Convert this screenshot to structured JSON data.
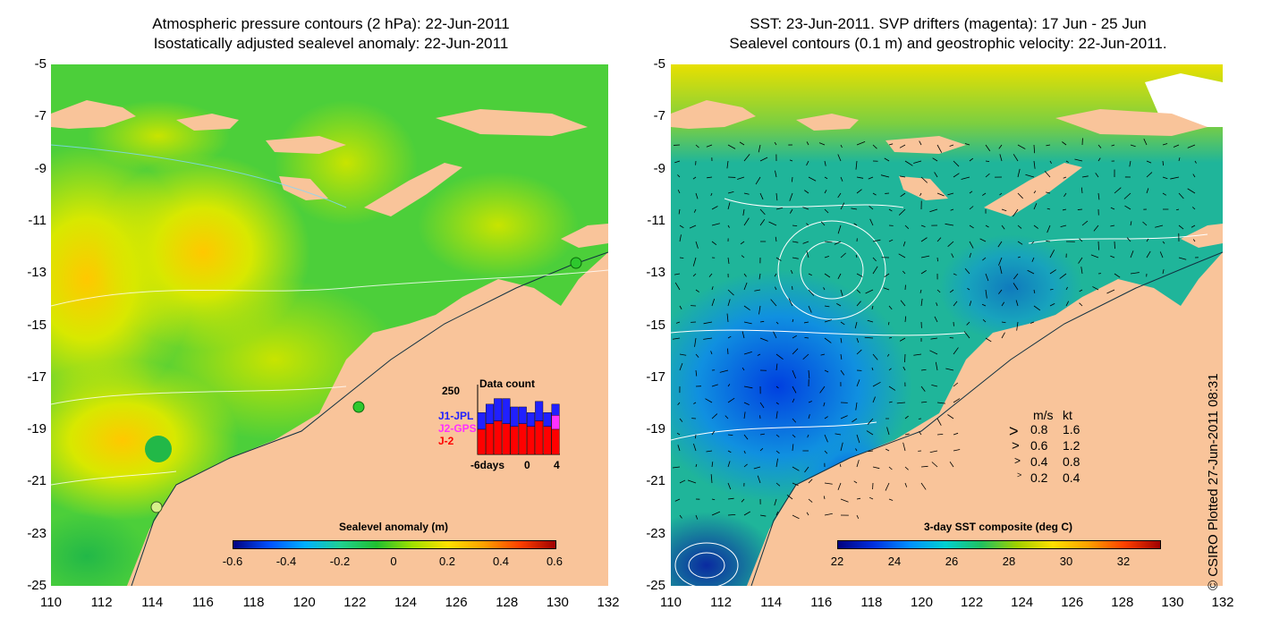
{
  "left_panel": {
    "title_line1": "Atmospheric pressure contours (2 hPa): 22-Jun-2011",
    "title_line2": "Isostatically adjusted sealevel anomaly: 22-Jun-2011",
    "colorbar": {
      "title": "Sealevel anomaly (m)",
      "ticks": [
        "-0.6",
        "-0.4",
        "-0.2",
        "0",
        "0.2",
        "0.4",
        "0.6"
      ],
      "colors": [
        "#000080",
        "#0050ff",
        "#00b0ff",
        "#20d090",
        "#20c030",
        "#a0e000",
        "#ffe000",
        "#ffa000",
        "#ff4000",
        "#a00000"
      ]
    },
    "data_count": {
      "title": "Data count",
      "ymax_label": "250",
      "x_ticks": [
        "-6days",
        "0",
        "4"
      ],
      "series": [
        {
          "name": "J1-JPL",
          "color": "#2020ff"
        },
        {
          "name": "J2-GPS",
          "color": "#ff30ff"
        },
        {
          "name": "J-2",
          "color": "#ff0000"
        }
      ],
      "bars": [
        {
          "day": -6,
          "j2": 90,
          "j2gps": 0,
          "j1": 60
        },
        {
          "day": -5,
          "j2": 110,
          "j2gps": 0,
          "j1": 70
        },
        {
          "day": -4,
          "j2": 120,
          "j2gps": 0,
          "j1": 80
        },
        {
          "day": -3,
          "j2": 110,
          "j2gps": 0,
          "j1": 90
        },
        {
          "day": -2,
          "j2": 100,
          "j2gps": 0,
          "j1": 70
        },
        {
          "day": -1,
          "j2": 110,
          "j2gps": 0,
          "j1": 60
        },
        {
          "day": 0,
          "j2": 100,
          "j2gps": 0,
          "j1": 50
        },
        {
          "day": 1,
          "j2": 120,
          "j2gps": 0,
          "j1": 70
        },
        {
          "day": 2,
          "j2": 100,
          "j2gps": 0,
          "j1": 50
        },
        {
          "day": 3,
          "j2": 90,
          "j2gps": 50,
          "j1": 40
        }
      ]
    }
  },
  "right_panel": {
    "title_line1": "SST: 23-Jun-2011. SVP drifters (magenta): 17 Jun - 25 Jun",
    "title_line2": "Sealevel contours (0.1 m) and geostrophic velocity: 22-Jun-2011.",
    "colorbar": {
      "title": "3-day SST composite (deg C)",
      "ticks": [
        "22",
        "24",
        "26",
        "28",
        "30",
        "32"
      ],
      "colors": [
        "#000080",
        "#0030e0",
        "#0090ff",
        "#00d0d0",
        "#20c060",
        "#a0d000",
        "#ffe000",
        "#ffa000",
        "#ff4000",
        "#a00000"
      ]
    },
    "velocity_legend": {
      "header_ms": "m/s",
      "header_kt": "kt",
      "rows": [
        {
          "ms": "0.8",
          "kt": "1.6"
        },
        {
          "ms": "0.6",
          "kt": "1.2"
        },
        {
          "ms": "0.4",
          "kt": "0.8"
        },
        {
          "ms": "0.2",
          "kt": "0.4"
        }
      ]
    }
  },
  "axes": {
    "y_ticks": [
      "-5",
      "-7",
      "-9",
      "-11",
      "-13",
      "-15",
      "-17",
      "-19",
      "-21",
      "-23",
      "-25"
    ],
    "x_ticks": [
      "110",
      "112",
      "114",
      "116",
      "118",
      "120",
      "122",
      "124",
      "126",
      "128",
      "130",
      "132"
    ],
    "lon_range": [
      110,
      132
    ],
    "lat_range": [
      -25,
      -5
    ]
  },
  "credit": "© CSIRO Plotted 27-Jun-2011 08:31",
  "colors": {
    "land": "#f9c49a",
    "sla_base": "#4ccf3a",
    "sst_base": "#1fb59a"
  }
}
